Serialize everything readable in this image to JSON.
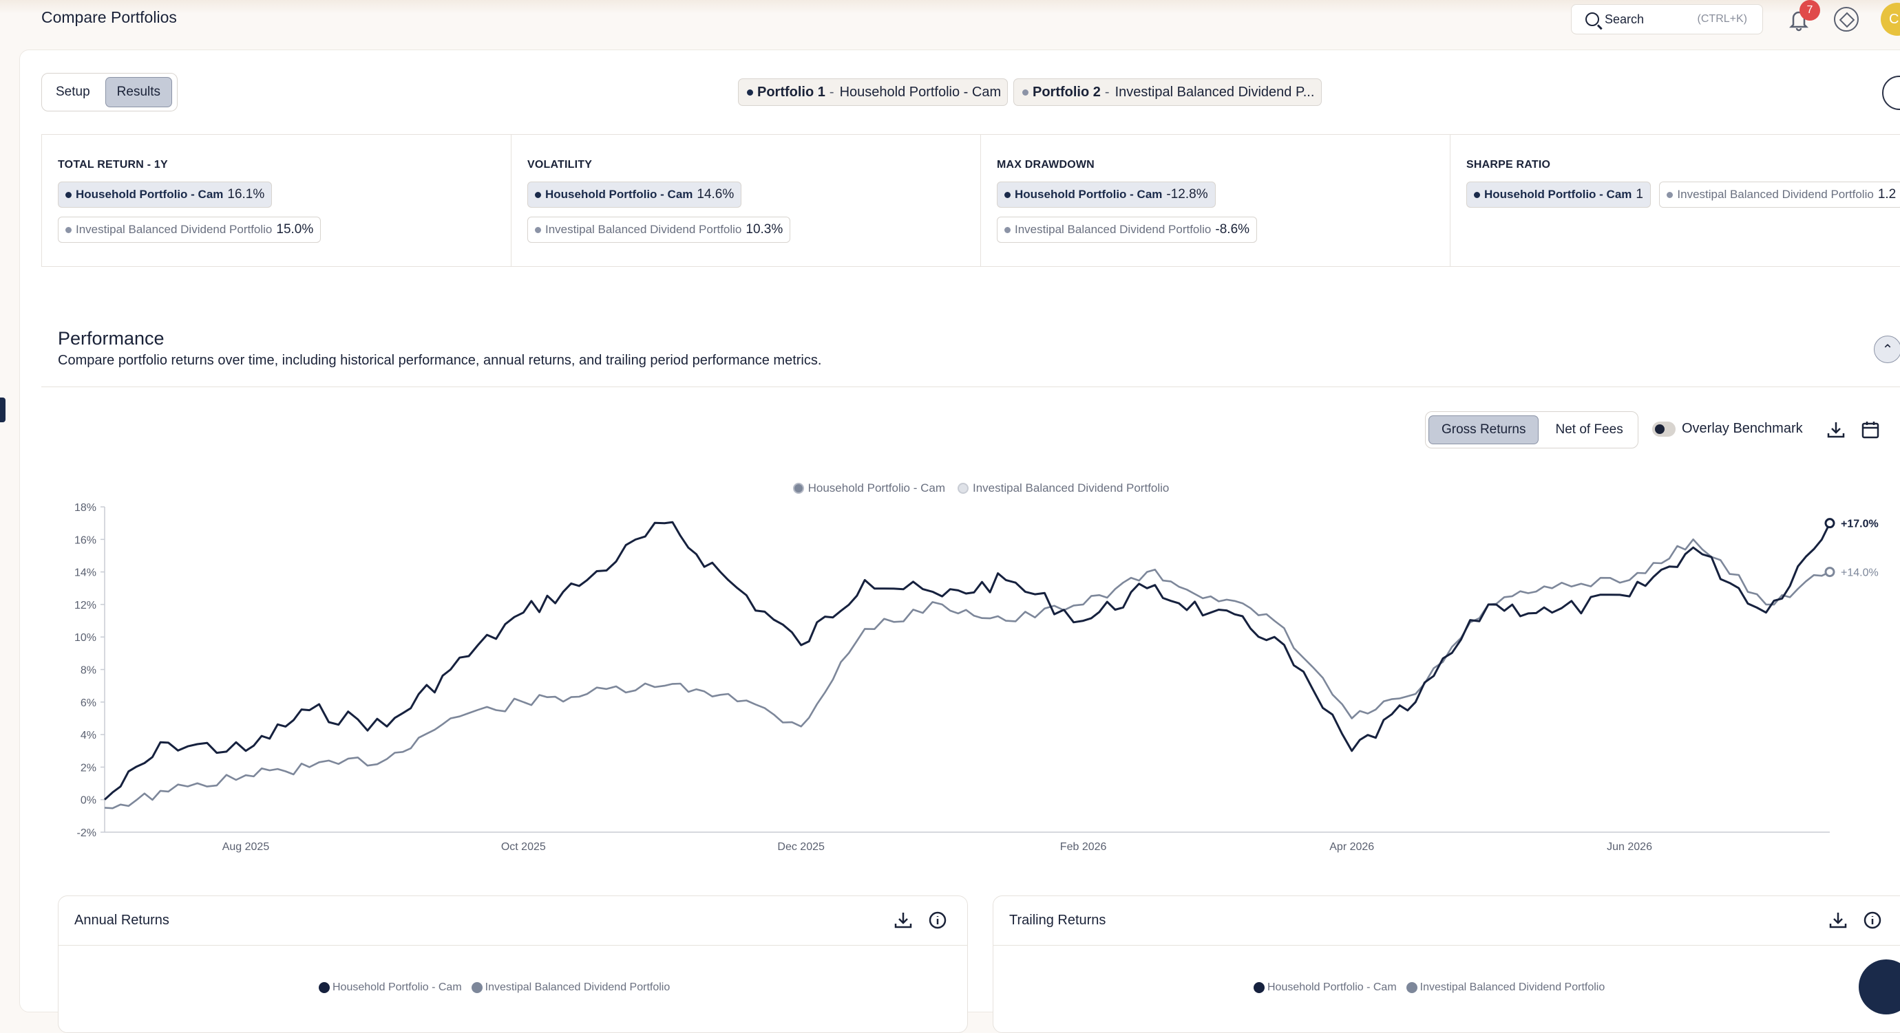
{
  "header": {
    "title": "Compare Portfolios",
    "search_label": "Search",
    "search_shortcut": "(CTRL+K)",
    "notifications_count": "7",
    "avatar_initial": "C"
  },
  "view_toggle": {
    "setup": "Setup",
    "results": "Results",
    "active": "Results"
  },
  "portfolios": [
    {
      "prefix": "Portfolio 1",
      "name": "Household Portfolio - Cam"
    },
    {
      "prefix": "Portfolio 2",
      "name": "Investipal Balanced Dividend P..."
    }
  ],
  "metrics": [
    {
      "title": "TOTAL RETURN - 1Y",
      "p1_name": "Household Portfolio - Cam",
      "p1_value": "16.1%",
      "p2_name": "Investipal Balanced Dividend Portfolio",
      "p2_value": "15.0%"
    },
    {
      "title": "VOLATILITY",
      "p1_name": "Household Portfolio - Cam",
      "p1_value": "14.6%",
      "p2_name": "Investipal Balanced Dividend Portfolio",
      "p2_value": "10.3%"
    },
    {
      "title": "MAX DRAWDOWN",
      "p1_name": "Household Portfolio - Cam",
      "p1_value": "-12.8%",
      "p2_name": "Investipal Balanced Dividend Portfolio",
      "p2_value": "-8.6%"
    },
    {
      "title": "SHARPE RATIO",
      "p1_name": "Household Portfolio - Cam",
      "p1_value": "1",
      "p2_name": "Investipal Balanced Dividend Portfolio",
      "p2_value": "1.2"
    }
  ],
  "performance": {
    "title": "Performance",
    "subtitle": "Compare portfolio returns over time, including historical performance, annual returns, and trailing period performance metrics.",
    "returns_toggle": {
      "gross": "Gross Returns",
      "net": "Net of Fees",
      "active": "Gross Returns"
    },
    "overlay_benchmark_label": "Overlay Benchmark",
    "overlay_benchmark_on": false
  },
  "chart_data": {
    "type": "line",
    "title": "",
    "xlabel": "",
    "ylabel": "",
    "x_ticks": [
      "Aug 2025",
      "Oct 2025",
      "Dec 2025",
      "Feb 2026",
      "Apr 2026",
      "Jun 2026"
    ],
    "y_ticks": [
      "18%",
      "16%",
      "14%",
      "12%",
      "10%",
      "8%",
      "6%",
      "4%",
      "2%",
      "0%",
      "-2%"
    ],
    "ylim": [
      -2,
      18
    ],
    "x": [
      "2025-07-01",
      "2025-07-15",
      "2025-08-01",
      "2025-08-15",
      "2025-09-01",
      "2025-09-15",
      "2025-10-01",
      "2025-10-15",
      "2025-11-01",
      "2025-11-15",
      "2025-12-01",
      "2025-12-15",
      "2026-01-01",
      "2026-01-15",
      "2026-02-01",
      "2026-02-15",
      "2026-03-01",
      "2026-03-15",
      "2026-04-01",
      "2026-04-15",
      "2026-05-01",
      "2026-05-15",
      "2026-06-01",
      "2026-06-15",
      "2026-07-01",
      "2026-07-15"
    ],
    "series": [
      {
        "name": "Household Portfolio - Cam",
        "color": "#16213e",
        "end_label": "+17.0%",
        "values": [
          0.0,
          3.5,
          3.0,
          5.5,
          4.5,
          8.0,
          11.5,
          13.5,
          17.0,
          13.5,
          9.5,
          13.5,
          12.5,
          13.5,
          11.0,
          13.0,
          11.5,
          10.0,
          3.0,
          6.0,
          12.0,
          11.5,
          12.5,
          15.5,
          11.5,
          17.0
        ]
      },
      {
        "name": "Investipal Balanced Dividend Portfolio",
        "color": "#7d879a",
        "end_label": "+14.0%",
        "values": [
          -0.5,
          0.5,
          1.5,
          2.0,
          2.5,
          5.0,
          6.0,
          6.5,
          7.0,
          6.5,
          4.5,
          10.5,
          12.0,
          11.0,
          12.0,
          14.0,
          12.5,
          11.0,
          5.0,
          6.5,
          12.0,
          13.0,
          13.5,
          16.0,
          12.0,
          14.0
        ]
      }
    ],
    "legend_position": "top-center",
    "grid": false
  },
  "annual_returns": {
    "title": "Annual Returns",
    "legend": [
      "Household Portfolio - Cam",
      "Investipal Balanced Dividend Portfolio"
    ]
  },
  "trailing_returns": {
    "title": "Trailing Returns",
    "legend": [
      "Household Portfolio - Cam",
      "Investipal Balanced Dividend Portfolio"
    ]
  }
}
